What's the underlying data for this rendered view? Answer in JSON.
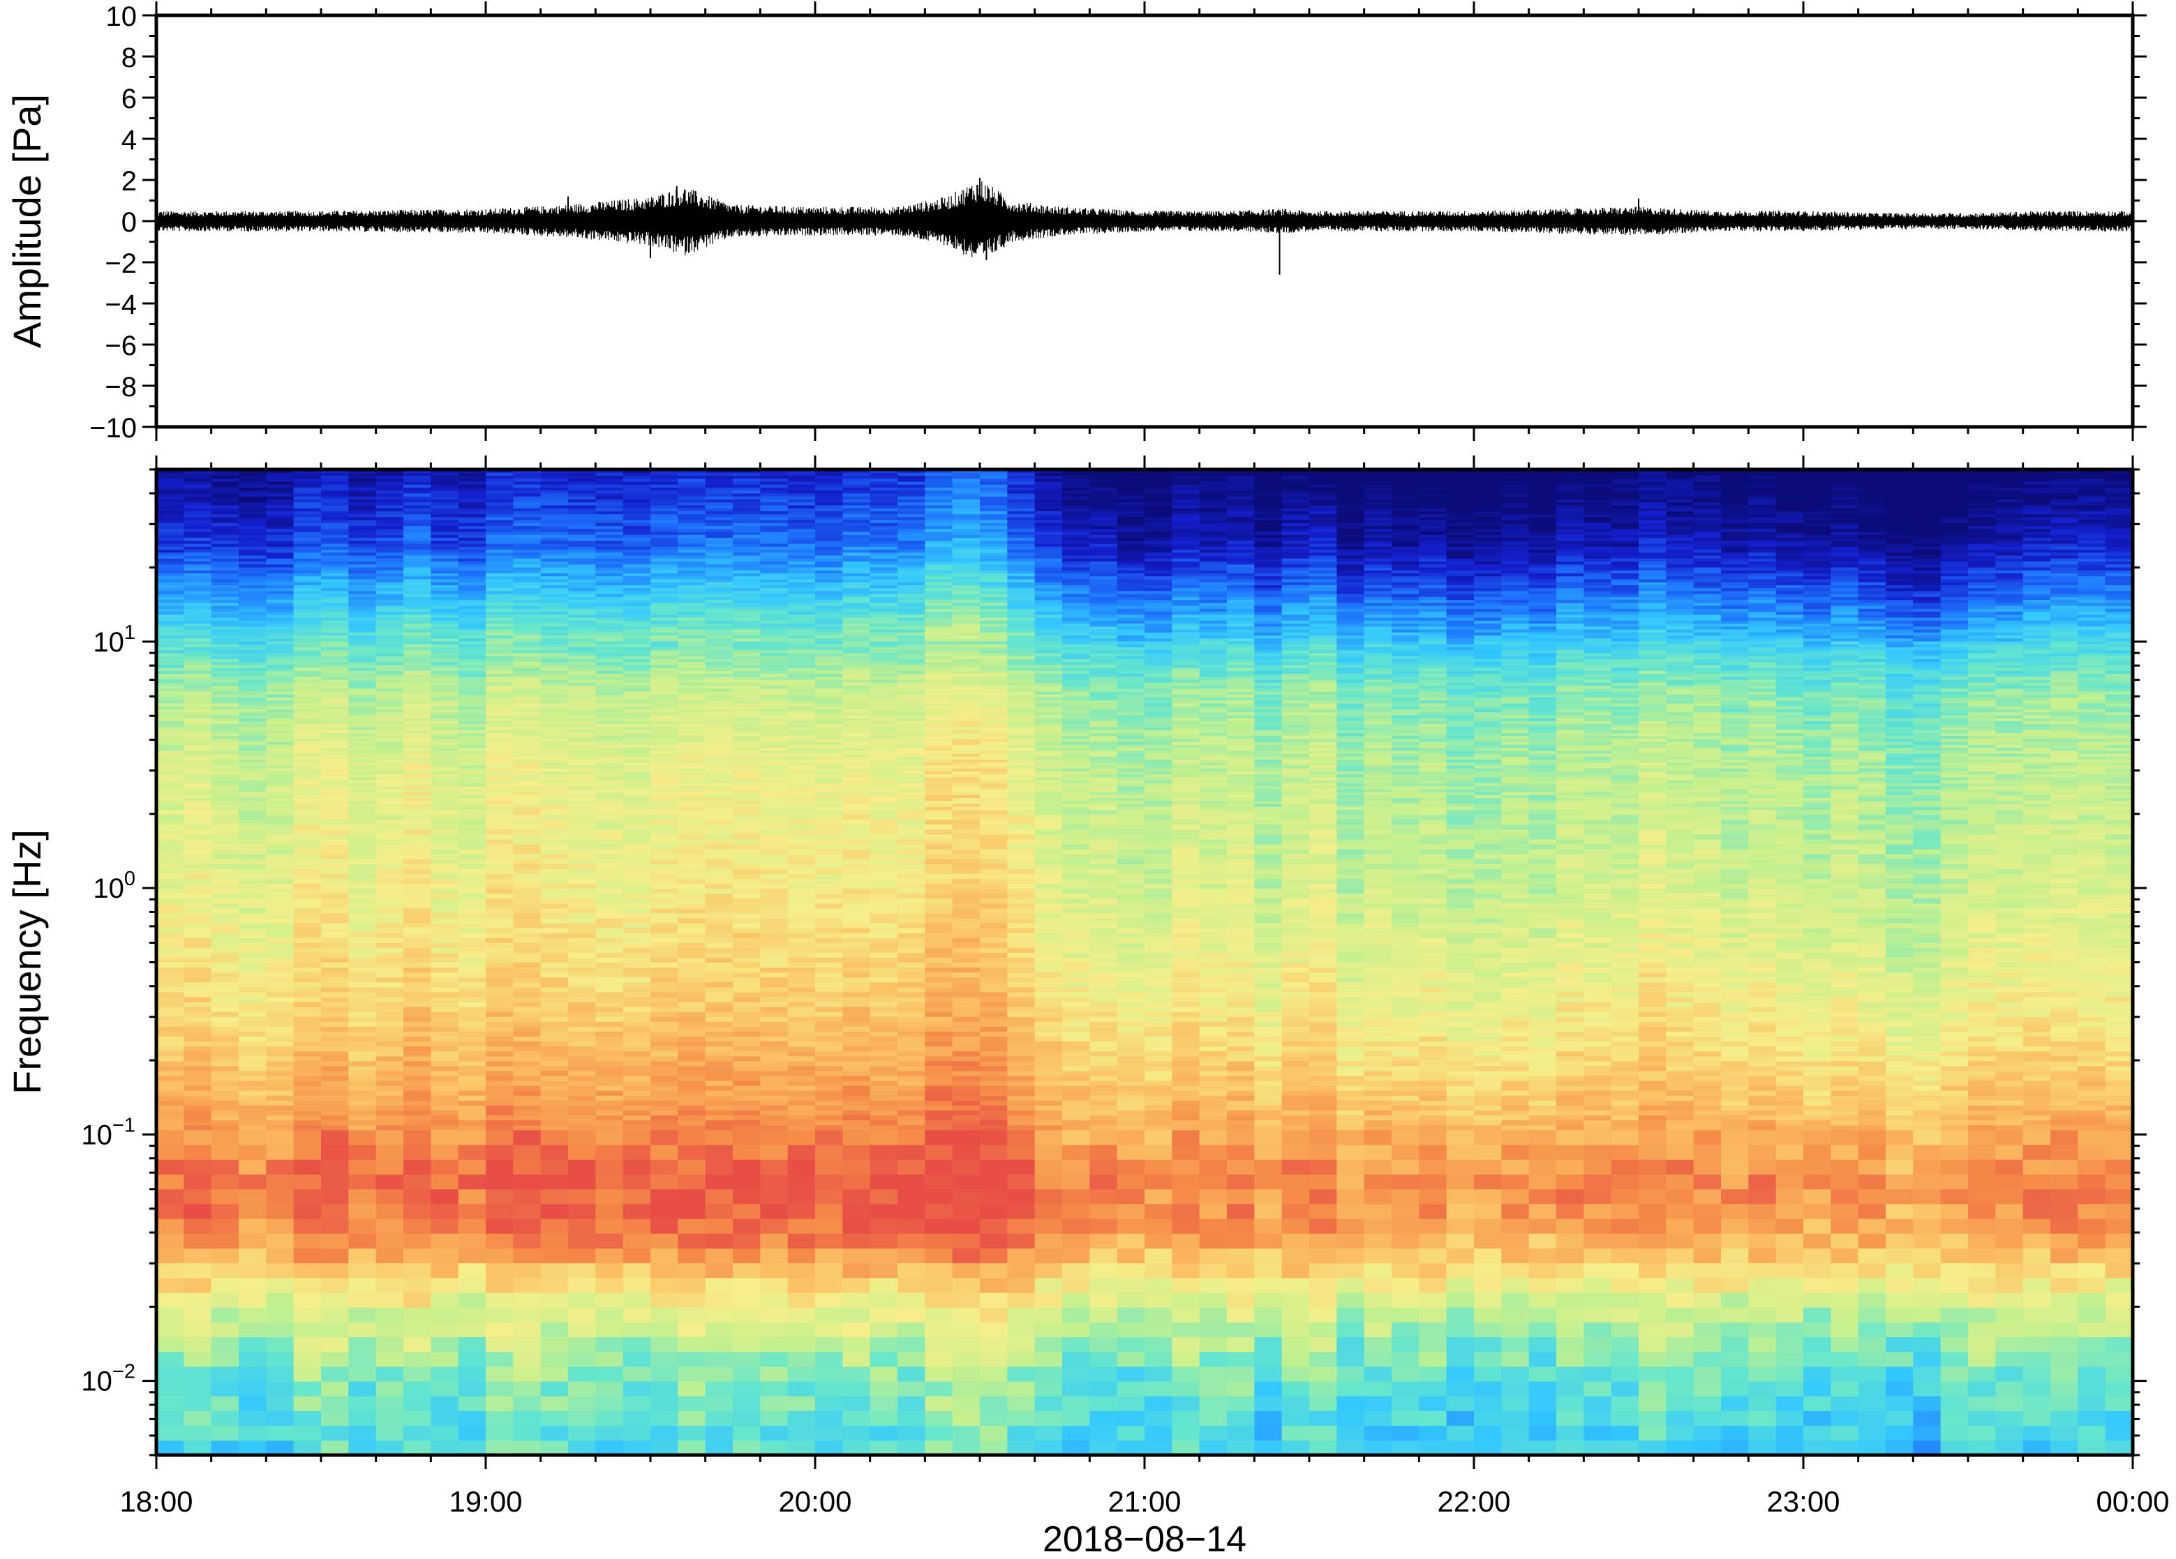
{
  "chart_data": [
    {
      "type": "line",
      "ylabel": "Amplitude [Pa]",
      "ylim": [
        -10,
        10
      ],
      "y_ticks": [
        10,
        8,
        6,
        4,
        2,
        0,
        -2,
        -4,
        -6,
        -8,
        -10
      ],
      "y_tick_labels": [
        "10",
        "8",
        "6",
        "4",
        "2",
        "0",
        "−2",
        "−4",
        "−6",
        "−8",
        "−10"
      ],
      "x_range": [
        "2018-08-14 18:00",
        "2018-08-15 00:00"
      ],
      "grid": false,
      "series": [
        {
          "color": "#000000",
          "envelope_hours": [
            18.0,
            18.5,
            19.0,
            19.25,
            19.5,
            19.6,
            19.75,
            20.0,
            20.25,
            20.4,
            20.5,
            20.6,
            20.75,
            21.0,
            21.25,
            21.42,
            21.5,
            21.75,
            22.0,
            22.25,
            22.5,
            22.75,
            23.0,
            23.25,
            23.5,
            23.75,
            24.0
          ],
          "envelope_abs_pa": [
            0.5,
            0.5,
            0.6,
            0.8,
            1.2,
            1.7,
            0.8,
            0.7,
            0.7,
            1.2,
            2.1,
            1.0,
            0.7,
            0.5,
            0.5,
            0.6,
            0.5,
            0.5,
            0.5,
            0.6,
            0.7,
            0.5,
            0.5,
            0.4,
            0.4,
            0.5,
            0.5
          ],
          "spikes": [
            {
              "hour": 19.58,
              "value": 1.7
            },
            {
              "hour": 19.5,
              "value": -1.8
            },
            {
              "hour": 20.5,
              "value": 2.1
            },
            {
              "hour": 20.52,
              "value": -1.9
            },
            {
              "hour": 21.41,
              "value": -2.6
            },
            {
              "hour": 19.25,
              "value": 1.2
            },
            {
              "hour": 22.5,
              "value": 1.1
            }
          ]
        }
      ]
    },
    {
      "type": "heatmap",
      "ylabel": "Frequency [Hz]",
      "xlabel": "2018−08−14",
      "y_scale": "log",
      "ylim": [
        0.005,
        50
      ],
      "y_ticks": [
        0.01,
        0.1,
        1,
        10
      ],
      "y_tick_mantissa": "10",
      "y_tick_exponents": [
        "−2",
        "−1",
        "0",
        "1"
      ],
      "x_tick_labels": [
        "18:00",
        "19:00",
        "20:00",
        "21:00",
        "22:00",
        "23:00",
        "00:00"
      ],
      "x_tick_hours": [
        18,
        19,
        20,
        21,
        22,
        23,
        24
      ],
      "colormap": [
        "#0b0c7a",
        "#1420d0",
        "#1e78ff",
        "#33c8ff",
        "#66e6cc",
        "#c4f08e",
        "#f5ef8a",
        "#fbc063",
        "#f58c48",
        "#e84e46"
      ],
      "grid": false,
      "profile": {
        "log10_freq": [
          -2.3,
          -2.0,
          -1.7,
          -1.4,
          -1.2,
          -1.0,
          -0.8,
          -0.5,
          0.0,
          0.5,
          0.8,
          1.0,
          1.2,
          1.4,
          1.7
        ],
        "level": [
          0.38,
          0.45,
          0.6,
          0.88,
          0.93,
          0.85,
          0.78,
          0.7,
          0.62,
          0.58,
          0.52,
          0.4,
          0.26,
          0.12,
          0.02
        ]
      },
      "time_activity": {
        "hours": [
          18.0,
          18.5,
          19.0,
          19.5,
          20.0,
          20.5,
          20.6,
          21.0,
          21.5,
          22.0,
          22.5,
          23.0,
          23.5,
          23.75,
          24.0
        ],
        "offset": [
          0.0,
          0.02,
          0.04,
          0.07,
          0.05,
          0.12,
          0.04,
          -0.04,
          -0.03,
          -0.04,
          -0.02,
          -0.04,
          -0.07,
          -0.01,
          0.0
        ]
      }
    }
  ]
}
